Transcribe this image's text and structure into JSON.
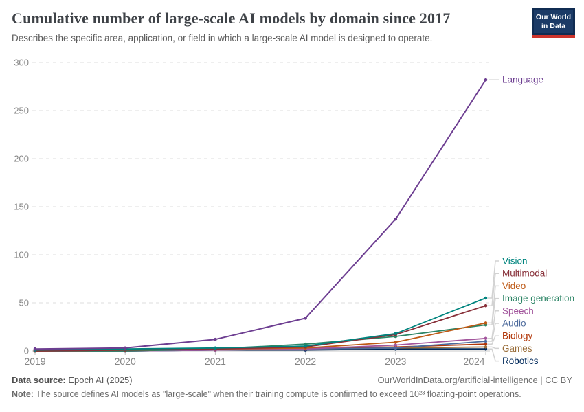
{
  "header": {
    "logo_line1": "Our World",
    "logo_line2": "in Data"
  },
  "chart_data": {
    "type": "line",
    "title": "Cumulative number of large-scale AI models by domain since 2017",
    "subtitle": "Describes the specific area, application, or field in which a large-scale AI model is designed to operate.",
    "x": [
      2019,
      2020,
      2021,
      2022,
      2023,
      2024
    ],
    "xlabel": "",
    "ylabel": "",
    "ylim": [
      0,
      300
    ],
    "yticks": [
      0,
      50,
      100,
      150,
      200,
      250,
      300
    ],
    "grid": "horizontal dashed",
    "legend_position": "right edge, direct line labels",
    "series": [
      {
        "name": "Language",
        "color": "#6D3E91",
        "values": [
          2,
          3,
          12,
          34,
          137,
          282
        ]
      },
      {
        "name": "Vision",
        "color": "#00847E",
        "values": [
          1,
          2,
          3,
          5,
          18,
          55
        ]
      },
      {
        "name": "Multimodal",
        "color": "#883039",
        "values": [
          0,
          1,
          2,
          4,
          17,
          47
        ]
      },
      {
        "name": "Video",
        "color": "#BE5915",
        "values": [
          0,
          1,
          2,
          3,
          9,
          29
        ]
      },
      {
        "name": "Image generation",
        "color": "#2C8465",
        "values": [
          0,
          0,
          2,
          7,
          15,
          27
        ]
      },
      {
        "name": "Speech",
        "color": "#A2559C",
        "values": [
          0,
          0,
          1,
          2,
          6,
          13
        ]
      },
      {
        "name": "Audio",
        "color": "#4C6A9C",
        "values": [
          0,
          0,
          1,
          2,
          3,
          10
        ]
      },
      {
        "name": "Biology",
        "color": "#B13507",
        "values": [
          0,
          1,
          1,
          3,
          4,
          7
        ]
      },
      {
        "name": "Games",
        "color": "#996D39",
        "values": [
          1,
          1,
          2,
          2,
          3,
          4
        ]
      },
      {
        "name": "Robotics",
        "color": "#00295B",
        "values": [
          0,
          0,
          1,
          1,
          2,
          2
        ]
      }
    ]
  },
  "footer": {
    "source_label": "Data source:",
    "source_value": " Epoch AI (2025)",
    "link_text": "OurWorldInData.org/artificial-intelligence | CC BY",
    "note_label": "Note:",
    "note_text": " The source defines AI models as \"large-scale\" when their training compute is confirmed to exceed 10²³ floating-point operations."
  }
}
